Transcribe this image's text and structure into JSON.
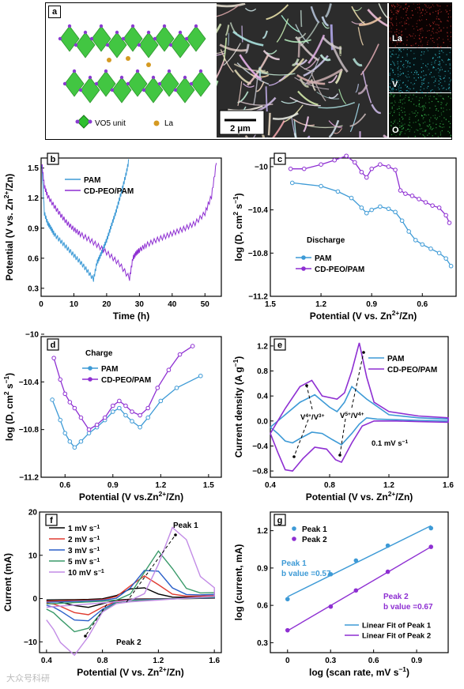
{
  "panel_a": {
    "label": "a",
    "legend_vo5": "VO5 unit",
    "legend_la": "La",
    "scale_bar": "2 μm",
    "eds_labels": [
      "La",
      "V",
      "O"
    ]
  },
  "chart_data": [
    {
      "id": "b",
      "type": "line",
      "xlabel": "Time (h)",
      "ylabel": "Potential (V vs. Zn2+/Zn)",
      "xlim": [
        0,
        55
      ],
      "ylim": [
        0.22,
        1.6
      ],
      "xticks": [
        "0",
        "10",
        "20",
        "30",
        "40",
        "50"
      ],
      "yticks": [
        "0.3",
        "0.6",
        "0.9",
        "1.2",
        "1.5"
      ],
      "series": [
        {
          "name": "PAM",
          "color": "#3d9ad6",
          "x": [
            0.2,
            1,
            2,
            3,
            4,
            6,
            8,
            10,
            12,
            14,
            16,
            17,
            18,
            19,
            20,
            21,
            22,
            23,
            24,
            25,
            26,
            26.8
          ],
          "y": [
            1.55,
            1.05,
            0.95,
            0.9,
            0.84,
            0.77,
            0.7,
            0.63,
            0.56,
            0.48,
            0.39,
            0.55,
            0.62,
            0.7,
            0.78,
            0.88,
            0.98,
            1.08,
            1.2,
            1.32,
            1.45,
            1.58
          ]
        },
        {
          "name": "CD-PEO/PAM",
          "color": "#8e2fd2",
          "x": [
            0.2,
            1,
            2,
            4,
            6,
            8,
            10,
            12,
            15,
            18,
            21,
            24,
            27,
            28,
            29,
            30,
            32,
            35,
            38,
            41,
            44,
            47,
            50,
            52,
            53.5
          ],
          "y": [
            1.55,
            1.32,
            1.22,
            1.12,
            1.03,
            0.95,
            0.89,
            0.84,
            0.78,
            0.71,
            0.63,
            0.54,
            0.4,
            0.6,
            0.65,
            0.68,
            0.73,
            0.78,
            0.82,
            0.86,
            0.9,
            0.95,
            1.05,
            1.22,
            1.55
          ]
        }
      ]
    },
    {
      "id": "c",
      "type": "scatter",
      "xlabel": "Potential (V vs. Zn2+/Zn)",
      "ylabel": "log (D, cm2 s-1)",
      "xlim": [
        1.5,
        0.4
      ],
      "ylim": [
        -11.2,
        -9.92
      ],
      "xticks": [
        "1.5",
        "1.2",
        "0.9",
        "0.6"
      ],
      "yticks": [
        "-10",
        "-10.4",
        "-10.8",
        "-11.2"
      ],
      "annotation": "Discharge",
      "series": [
        {
          "name": "PAM",
          "color": "#3d9ad6",
          "x": [
            1.37,
            1.2,
            1.1,
            1.02,
            0.96,
            0.93,
            0.9,
            0.85,
            0.8,
            0.76,
            0.72,
            0.68,
            0.64,
            0.6,
            0.55,
            0.5,
            0.46,
            0.43
          ],
          "y": [
            -10.15,
            -10.18,
            -10.23,
            -10.29,
            -10.38,
            -10.43,
            -10.4,
            -10.37,
            -10.39,
            -10.42,
            -10.5,
            -10.6,
            -10.68,
            -10.72,
            -10.76,
            -10.8,
            -10.85,
            -10.92
          ]
        },
        {
          "name": "CD-PEO/PAM",
          "color": "#8e2fd2",
          "x": [
            1.38,
            1.3,
            1.2,
            1.12,
            1.05,
            1.0,
            0.96,
            0.93,
            0.9,
            0.85,
            0.8,
            0.76,
            0.73,
            0.7,
            0.66,
            0.62,
            0.58,
            0.54,
            0.5,
            0.46,
            0.44
          ],
          "y": [
            -10.02,
            -10.02,
            -9.98,
            -9.94,
            -9.9,
            -9.96,
            -10.05,
            -10.1,
            -10.02,
            -9.98,
            -10.0,
            -10.03,
            -10.22,
            -10.25,
            -10.27,
            -10.3,
            -10.33,
            -10.36,
            -10.38,
            -10.45,
            -10.52
          ]
        }
      ]
    },
    {
      "id": "d",
      "type": "scatter",
      "xlabel": "Potential (V vs.Zn2+/Zn)",
      "ylabel": "log (D, cm2 s-1)",
      "xlim": [
        0.45,
        1.58
      ],
      "ylim": [
        -11.2,
        -10.02
      ],
      "xticks": [
        "0.6",
        "0.9",
        "1.2",
        "1.5"
      ],
      "yticks": [
        "-10",
        "-10.4",
        "-10.8",
        "-11.2"
      ],
      "annotation": "Charge",
      "series": [
        {
          "name": "PAM",
          "color": "#3d9ad6",
          "x": [
            0.52,
            0.57,
            0.6,
            0.63,
            0.66,
            0.7,
            0.75,
            0.8,
            0.85,
            0.9,
            0.94,
            0.98,
            1.02,
            1.07,
            1.12,
            1.2,
            1.3,
            1.45
          ],
          "y": [
            -10.55,
            -10.72,
            -10.83,
            -10.9,
            -10.95,
            -10.9,
            -10.83,
            -10.78,
            -10.72,
            -10.65,
            -10.62,
            -10.68,
            -10.73,
            -10.78,
            -10.7,
            -10.56,
            -10.45,
            -10.35
          ]
        },
        {
          "name": "CD-PEO/PAM",
          "color": "#8e2fd2",
          "x": [
            0.53,
            0.57,
            0.6,
            0.63,
            0.66,
            0.7,
            0.75,
            0.8,
            0.85,
            0.9,
            0.94,
            0.98,
            1.02,
            1.07,
            1.12,
            1.18,
            1.25,
            1.32,
            1.4
          ],
          "y": [
            -10.2,
            -10.38,
            -10.5,
            -10.57,
            -10.62,
            -10.7,
            -10.8,
            -10.76,
            -10.7,
            -10.6,
            -10.56,
            -10.6,
            -10.65,
            -10.68,
            -10.62,
            -10.45,
            -10.3,
            -10.17,
            -10.1
          ]
        }
      ]
    },
    {
      "id": "e",
      "type": "line",
      "xlabel": "Potential (V vs. Zn2+/Zn)",
      "ylabel": "Current density (A g-1)",
      "xlim": [
        0.4,
        1.6
      ],
      "ylim": [
        -0.9,
        1.35
      ],
      "xticks": [
        "0.4",
        "0.8",
        "1.2",
        "1.6"
      ],
      "yticks": [
        "-0.8",
        "-0.4",
        "0.0",
        "0.4",
        "0.8",
        "1.2"
      ],
      "annotations": [
        "V4+/V3+",
        "V5+/V4+",
        "0.1 mV s-1"
      ],
      "series": [
        {
          "name": "PAM",
          "color": "#3d9ad6",
          "x": [
            0.4,
            0.45,
            0.5,
            0.55,
            0.6,
            0.68,
            0.75,
            0.82,
            0.88,
            0.95,
            1.0,
            1.05,
            1.12,
            1.25,
            1.4,
            1.6,
            1.6,
            1.4,
            1.2,
            1.05,
            0.95,
            0.9,
            0.85,
            0.8,
            0.7,
            0.6,
            0.5,
            0.45,
            0.4
          ],
          "y": [
            -0.1,
            -0.2,
            -0.32,
            -0.35,
            -0.28,
            -0.18,
            -0.2,
            -0.3,
            -0.38,
            -0.2,
            -0.05,
            0.05,
            0.03,
            0.02,
            0.01,
            0.0,
            0.03,
            0.05,
            0.1,
            0.35,
            0.55,
            0.3,
            0.15,
            0.22,
            0.42,
            0.3,
            0.1,
            0.0,
            -0.1
          ]
        },
        {
          "name": "CD-PEO/PAM",
          "color": "#8e2fd2",
          "x": [
            0.4,
            0.45,
            0.5,
            0.55,
            0.62,
            0.7,
            0.78,
            0.84,
            0.88,
            0.95,
            1.02,
            1.1,
            1.25,
            1.4,
            1.6,
            1.6,
            1.4,
            1.2,
            1.1,
            1.05,
            1.0,
            0.95,
            0.9,
            0.85,
            0.75,
            0.68,
            0.6,
            0.5,
            0.45,
            0.4
          ],
          "y": [
            -0.2,
            -0.5,
            -0.78,
            -0.8,
            -0.6,
            -0.42,
            -0.45,
            -0.62,
            -0.66,
            -0.35,
            -0.08,
            0.0,
            0.0,
            -0.01,
            -0.02,
            0.05,
            0.08,
            0.15,
            0.3,
            0.7,
            1.25,
            0.8,
            0.45,
            0.35,
            0.4,
            0.65,
            0.55,
            0.2,
            0.0,
            -0.2
          ]
        }
      ]
    },
    {
      "id": "f",
      "type": "line",
      "xlabel": "Potential (V vs. Zn2+/Zn)",
      "ylabel": "Current (mA)",
      "xlim": [
        0.35,
        1.65
      ],
      "ylim": [
        -12.5,
        20
      ],
      "xticks": [
        "0.4",
        "0.8",
        "1.2",
        "1.6"
      ],
      "yticks": [
        "-10",
        "0",
        "10",
        "20"
      ],
      "annotations": [
        "Peak 1",
        "Peak 2"
      ],
      "series": [
        {
          "name": "1 mV s-1",
          "color": "#000000",
          "scale": 0.16
        },
        {
          "name": "2 mV s-1",
          "color": "#e03c31",
          "scale": 0.3
        },
        {
          "name": "3 mV s-1",
          "color": "#2a5fc9",
          "scale": 0.43
        },
        {
          "name": "5 mV s-1",
          "color": "#3a9a6a",
          "scale": 0.62
        },
        {
          "name": "10 mV s-1",
          "color": "#c28be6",
          "scale": 1.0
        }
      ]
    },
    {
      "id": "g",
      "type": "scatter",
      "xlabel": "log (scan rate, mV s-1)",
      "ylabel": "log (current, mA)",
      "xlim": [
        -0.12,
        1.12
      ],
      "ylim": [
        0.22,
        1.35
      ],
      "xticks": [
        "0",
        "0.3",
        "0.6",
        "0.9"
      ],
      "yticks": [
        "0.3",
        "0.6",
        "0.9",
        "1.2"
      ],
      "annotations": [
        "Peak 1\nb value =0.57",
        "Peak 2\nb value =0.67"
      ],
      "legend_fit": [
        "Linear Fit of Peak 1",
        "Linear Fit of Peak 2"
      ],
      "series": [
        {
          "name": "Peak 1",
          "color": "#3d9ad6",
          "x": [
            0,
            0.301,
            0.477,
            0.699,
            1.0
          ],
          "y": [
            0.65,
            0.85,
            0.96,
            1.08,
            1.22
          ]
        },
        {
          "name": "Peak 2",
          "color": "#8e2fd2",
          "x": [
            0,
            0.301,
            0.477,
            0.699,
            1.0
          ],
          "y": [
            0.4,
            0.59,
            0.72,
            0.87,
            1.07
          ]
        }
      ]
    }
  ],
  "watermark": "大众号科研"
}
